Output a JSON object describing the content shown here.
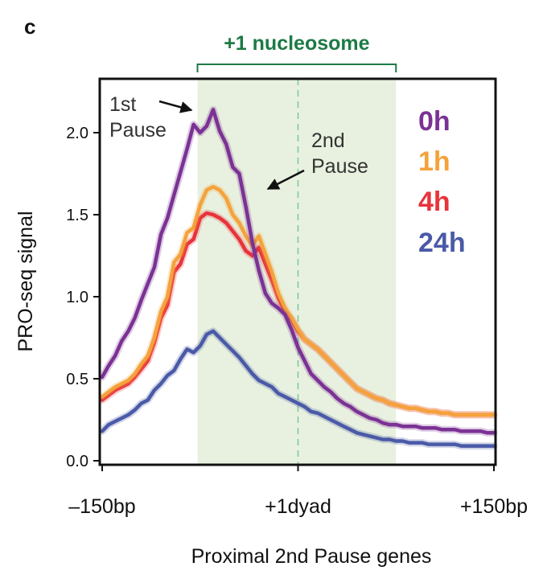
{
  "panel_label": "c",
  "chart_data": {
    "type": "line",
    "xlabel": "Proximal 2nd Pause genes",
    "ylabel": "PRO-seq signal",
    "xlim": [
      -150,
      150
    ],
    "ylim": [
      0,
      2.35
    ],
    "x_ticks": [
      {
        "value": -150,
        "label": "–150bp"
      },
      {
        "value": 0,
        "label": "+1dyad"
      },
      {
        "value": 150,
        "label": "+150bp"
      }
    ],
    "y_ticks": [
      {
        "value": 0,
        "label": "0.0"
      },
      {
        "value": 0.5,
        "label": "0.5"
      },
      {
        "value": 1.0,
        "label": "1.0"
      },
      {
        "value": 1.5,
        "label": "1.5"
      },
      {
        "value": 2.0,
        "label": "2.0"
      }
    ],
    "region": {
      "label": "+1 nucleosome",
      "from": -77,
      "to": 75,
      "color": "#e8f1df",
      "label_color": "#1d7a45"
    },
    "dyad_line": {
      "x": 0,
      "style": "dashed",
      "color": "#7cc79a"
    },
    "grid": false,
    "legend_position": "top-right",
    "annotations": [
      {
        "text_lines": [
          "1st",
          "Pause"
        ],
        "points_to": [
          -80,
          2.12
        ]
      },
      {
        "text_lines": [
          "2nd",
          "Pause"
        ],
        "points_to": [
          -25,
          1.65
        ]
      }
    ],
    "series": [
      {
        "name": "0h",
        "color": "#7b3294",
        "x": [
          -150,
          -145,
          -140,
          -135,
          -130,
          -125,
          -120,
          -115,
          -110,
          -105,
          -100,
          -95,
          -90,
          -85,
          -80,
          -75,
          -70,
          -65,
          -60,
          -55,
          -50,
          -45,
          -40,
          -35,
          -30,
          -25,
          -20,
          -15,
          -10,
          -5,
          0,
          5,
          10,
          15,
          20,
          25,
          30,
          35,
          40,
          45,
          50,
          55,
          60,
          65,
          70,
          75,
          80,
          85,
          90,
          95,
          100,
          105,
          110,
          115,
          120,
          125,
          130,
          135,
          140,
          145,
          150
        ],
        "values": [
          0.51,
          0.58,
          0.64,
          0.73,
          0.79,
          0.87,
          0.98,
          1.08,
          1.18,
          1.38,
          1.48,
          1.62,
          1.76,
          1.9,
          2.05,
          2.0,
          2.04,
          2.14,
          2.01,
          1.93,
          1.79,
          1.75,
          1.55,
          1.33,
          1.16,
          1.02,
          0.96,
          0.93,
          0.89,
          0.8,
          0.69,
          0.61,
          0.53,
          0.49,
          0.45,
          0.42,
          0.38,
          0.35,
          0.33,
          0.3,
          0.28,
          0.26,
          0.25,
          0.23,
          0.22,
          0.22,
          0.21,
          0.21,
          0.21,
          0.2,
          0.2,
          0.2,
          0.19,
          0.19,
          0.19,
          0.18,
          0.18,
          0.18,
          0.18,
          0.17,
          0.17
        ]
      },
      {
        "name": "1h",
        "color": "#f4a23b",
        "x": [
          -150,
          -145,
          -140,
          -135,
          -130,
          -125,
          -120,
          -115,
          -110,
          -105,
          -100,
          -95,
          -90,
          -85,
          -80,
          -75,
          -70,
          -65,
          -60,
          -55,
          -50,
          -45,
          -40,
          -35,
          -30,
          -25,
          -20,
          -15,
          -10,
          -5,
          0,
          5,
          10,
          15,
          20,
          25,
          30,
          35,
          40,
          45,
          50,
          55,
          60,
          65,
          70,
          75,
          80,
          85,
          90,
          95,
          100,
          105,
          110,
          115,
          120,
          125,
          130,
          135,
          140,
          145,
          150
        ],
        "values": [
          0.39,
          0.42,
          0.45,
          0.47,
          0.49,
          0.53,
          0.59,
          0.64,
          0.75,
          0.91,
          1.0,
          1.21,
          1.26,
          1.39,
          1.42,
          1.56,
          1.65,
          1.67,
          1.65,
          1.6,
          1.5,
          1.45,
          1.37,
          1.31,
          1.37,
          1.26,
          1.15,
          1.02,
          0.93,
          0.87,
          0.8,
          0.74,
          0.71,
          0.68,
          0.64,
          0.6,
          0.56,
          0.52,
          0.48,
          0.44,
          0.42,
          0.4,
          0.38,
          0.37,
          0.35,
          0.34,
          0.33,
          0.32,
          0.32,
          0.31,
          0.3,
          0.3,
          0.29,
          0.29,
          0.28,
          0.28,
          0.28,
          0.28,
          0.28,
          0.28,
          0.28
        ]
      },
      {
        "name": "4h",
        "color": "#e8333b",
        "x": [
          -150,
          -145,
          -140,
          -135,
          -130,
          -125,
          -120,
          -115,
          -110,
          -105,
          -100,
          -95,
          -90,
          -85,
          -80,
          -75,
          -70,
          -65,
          -60,
          -55,
          -50,
          -45,
          -40,
          -35,
          -30,
          -25,
          -20,
          -15,
          -10,
          -5,
          0,
          5,
          10,
          15,
          20,
          25,
          30,
          35,
          40,
          45,
          50,
          55,
          60,
          65,
          70,
          75,
          80,
          85,
          90,
          95,
          100,
          105,
          110,
          115,
          120,
          125,
          130,
          135,
          140,
          145,
          150
        ],
        "values": [
          0.37,
          0.4,
          0.43,
          0.45,
          0.47,
          0.51,
          0.56,
          0.61,
          0.72,
          0.87,
          0.95,
          1.15,
          1.2,
          1.32,
          1.35,
          1.48,
          1.51,
          1.5,
          1.48,
          1.45,
          1.4,
          1.35,
          1.28,
          1.25,
          1.3,
          1.2,
          1.1,
          0.99,
          0.91,
          0.86,
          0.79,
          0.74,
          0.71,
          0.68,
          0.64,
          0.6,
          0.56,
          0.52,
          0.48,
          0.44,
          0.42,
          0.4,
          0.38,
          0.37,
          0.35,
          0.34,
          0.33,
          0.32,
          0.32,
          0.31,
          0.3,
          0.3,
          0.29,
          0.29,
          0.28,
          0.28,
          0.28,
          0.28,
          0.28,
          0.28,
          0.28
        ]
      },
      {
        "name": "24h",
        "color": "#4a5aa7",
        "x": [
          -150,
          -145,
          -140,
          -135,
          -130,
          -125,
          -120,
          -115,
          -110,
          -105,
          -100,
          -95,
          -90,
          -85,
          -80,
          -75,
          -70,
          -65,
          -60,
          -55,
          -50,
          -45,
          -40,
          -35,
          -30,
          -25,
          -20,
          -15,
          -10,
          -5,
          0,
          5,
          10,
          15,
          20,
          25,
          30,
          35,
          40,
          45,
          50,
          55,
          60,
          65,
          70,
          75,
          80,
          85,
          90,
          95,
          100,
          105,
          110,
          115,
          120,
          125,
          130,
          135,
          140,
          145,
          150
        ],
        "values": [
          0.18,
          0.22,
          0.24,
          0.26,
          0.28,
          0.31,
          0.35,
          0.37,
          0.43,
          0.47,
          0.52,
          0.55,
          0.62,
          0.68,
          0.66,
          0.7,
          0.77,
          0.79,
          0.75,
          0.71,
          0.67,
          0.63,
          0.58,
          0.53,
          0.49,
          0.47,
          0.45,
          0.41,
          0.39,
          0.37,
          0.35,
          0.33,
          0.3,
          0.29,
          0.27,
          0.25,
          0.23,
          0.21,
          0.19,
          0.17,
          0.16,
          0.15,
          0.14,
          0.13,
          0.13,
          0.12,
          0.12,
          0.11,
          0.11,
          0.11,
          0.1,
          0.1,
          0.1,
          0.1,
          0.1,
          0.09,
          0.09,
          0.09,
          0.09,
          0.09,
          0.09
        ]
      }
    ]
  }
}
